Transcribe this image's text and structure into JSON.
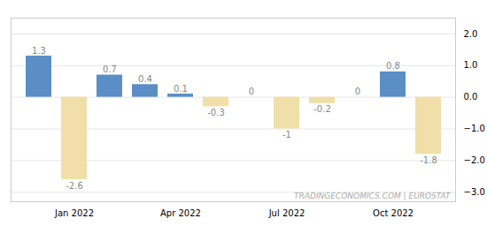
{
  "chart_data": {
    "type": "bar",
    "categories": [
      null,
      "Jan 2022",
      null,
      null,
      "Apr 2022",
      null,
      null,
      "Jul 2022",
      null,
      null,
      "Oct 2022",
      null
    ],
    "values": [
      1.3,
      -2.6,
      0.7,
      0.4,
      0.1,
      -0.3,
      0.0,
      -1.0,
      -0.2,
      0.0,
      0.8,
      -1.8
    ],
    "colors": [
      "#5b8ec4",
      "#f0dfa8",
      "#5b8ec4",
      "#5b8ec4",
      "#5b8ec4",
      "#f0dfa8",
      "#5b8ec4",
      "#f0dfa8",
      "#f0dfa8",
      "#5b8ec4",
      "#5b8ec4",
      "#f0dfa8"
    ],
    "ylim": [
      -3.3,
      2.5
    ],
    "yticks": [
      -3,
      -2,
      -1,
      0,
      1,
      2
    ],
    "grid": true,
    "data_labels": true,
    "annotations": [
      "TRADINGECONOMICS.COM | EUROSTAT"
    ]
  }
}
